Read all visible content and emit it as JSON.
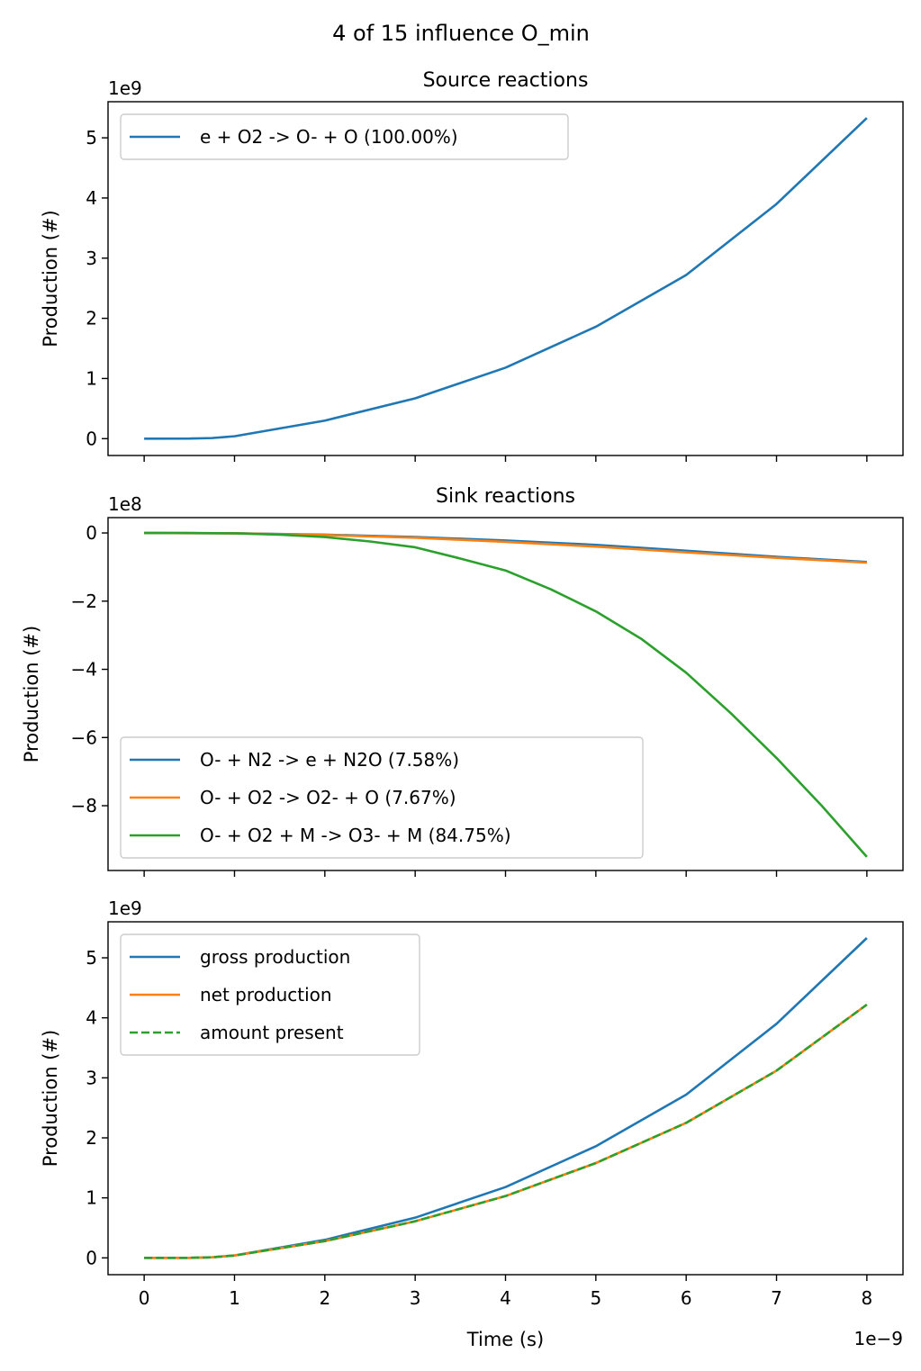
{
  "figure": {
    "suptitle": "4 of 15 influence O_min"
  },
  "colors": {
    "c0": "#1f77b4",
    "c1": "#ff7f0e",
    "c2": "#2ca02c"
  },
  "chart_data": [
    {
      "type": "line",
      "title": "Source reactions",
      "xlabel": "",
      "ylabel": "Production (#)",
      "y_multiplier": "1e9",
      "xlim": [
        -4e-10,
        8.4e-09
      ],
      "ylim": [
        -280000000.0,
        5600000000.0
      ],
      "yticks": [
        0,
        1,
        2,
        3,
        4,
        5
      ],
      "grid": false,
      "legend": "upper left",
      "series": [
        {
          "name": "e + O2 -> O- + O (100.00%)",
          "color": "#1f77b4",
          "style": "solid",
          "x": [
            0,
            5e-10,
            7.5e-10,
            1e-09,
            2e-09,
            3e-09,
            4e-09,
            5e-09,
            6e-09,
            7e-09,
            8e-09
          ],
          "y": [
            0,
            1000000.0,
            10000000.0,
            40000000.0,
            300000000.0,
            670000000.0,
            1180000000.0,
            1860000000.0,
            2720000000.0,
            3900000000.0,
            5330000000.0
          ]
        }
      ]
    },
    {
      "type": "line",
      "title": "Sink reactions",
      "xlabel": "",
      "ylabel": "Production (#)",
      "y_multiplier": "1e8",
      "xlim": [
        -4e-10,
        8.4e-09
      ],
      "ylim": [
        -990000000.0,
        45000000.0
      ],
      "yticks": [
        0,
        -2,
        -4,
        -6,
        -8
      ],
      "ytick_labels": [
        "0",
        "−2",
        "−4",
        "−6",
        "−8"
      ],
      "grid": false,
      "legend": "lower left",
      "series": [
        {
          "name": "O- + N2 -> e + N2O (7.58%)",
          "color": "#1f77b4",
          "style": "solid",
          "x": [
            0,
            1e-09,
            2e-09,
            3e-09,
            4e-09,
            5e-09,
            6e-09,
            7e-09,
            8e-09
          ],
          "y": [
            0,
            -1000000.0,
            -5000000.0,
            -12000000.0,
            -22000000.0,
            -35000000.0,
            -52000000.0,
            -70000000.0,
            -85000000.0
          ]
        },
        {
          "name": "O- + O2 -> O2- + O (7.67%)",
          "color": "#ff7f0e",
          "style": "solid",
          "x": [
            0,
            1e-09,
            2e-09,
            3e-09,
            4e-09,
            5e-09,
            6e-09,
            7e-09,
            8e-09
          ],
          "y": [
            0,
            -1000000.0,
            -6000000.0,
            -14000000.0,
            -26000000.0,
            -40000000.0,
            -57000000.0,
            -73000000.0,
            -87000000.0
          ]
        },
        {
          "name": "O- + O2 + M -> O3- + M (84.75%)",
          "color": "#2ca02c",
          "style": "solid",
          "x": [
            0,
            5e-10,
            1e-09,
            1.5e-09,
            2e-09,
            2.5e-09,
            3e-09,
            3.5e-09,
            4e-09,
            4.5e-09,
            5e-09,
            5.5e-09,
            6e-09,
            6.5e-09,
            7e-09,
            7.5e-09,
            8e-09
          ],
          "y": [
            0,
            0,
            -1000000.0,
            -5000000.0,
            -12000000.0,
            -25000000.0,
            -42000000.0,
            -75000000.0,
            -110000000.0,
            -165000000.0,
            -230000000.0,
            -310000000.0,
            -410000000.0,
            -530000000.0,
            -660000000.0,
            -800000000.0,
            -950000000.0
          ]
        }
      ]
    },
    {
      "type": "line",
      "title": "",
      "xlabel": "Time (s)",
      "ylabel": "Production (#)",
      "x_multiplier": "1e−9",
      "y_multiplier": "1e9",
      "xlim": [
        -4e-10,
        8.4e-09
      ],
      "xticks": [
        0,
        1,
        2,
        3,
        4,
        5,
        6,
        7,
        8
      ],
      "ylim": [
        -280000000.0,
        5600000000.0
      ],
      "yticks": [
        0,
        1,
        2,
        3,
        4,
        5
      ],
      "grid": false,
      "legend": "upper left",
      "series": [
        {
          "name": "gross production",
          "color": "#1f77b4",
          "style": "solid",
          "x": [
            0,
            5e-10,
            7.5e-10,
            1e-09,
            2e-09,
            3e-09,
            4e-09,
            5e-09,
            6e-09,
            7e-09,
            8e-09
          ],
          "y": [
            0,
            1000000.0,
            10000000.0,
            40000000.0,
            300000000.0,
            670000000.0,
            1180000000.0,
            1860000000.0,
            2720000000.0,
            3900000000.0,
            5330000000.0
          ]
        },
        {
          "name": "net production",
          "color": "#ff7f0e",
          "style": "solid",
          "x": [
            0,
            5e-10,
            7.5e-10,
            1e-09,
            2e-09,
            3e-09,
            4e-09,
            5e-09,
            6e-09,
            7e-09,
            8e-09
          ],
          "y": [
            0,
            1000000.0,
            10000000.0,
            40000000.0,
            280000000.0,
            610000000.0,
            1030000000.0,
            1580000000.0,
            2250000000.0,
            3120000000.0,
            4220000000.0
          ]
        },
        {
          "name": "amount present",
          "color": "#2ca02c",
          "style": "dashed",
          "x": [
            0,
            5e-10,
            7.5e-10,
            1e-09,
            2e-09,
            3e-09,
            4e-09,
            5e-09,
            6e-09,
            7e-09,
            8e-09
          ],
          "y": [
            0,
            1000000.0,
            10000000.0,
            40000000.0,
            280000000.0,
            610000000.0,
            1030000000.0,
            1580000000.0,
            2250000000.0,
            3120000000.0,
            4220000000.0
          ]
        }
      ]
    }
  ]
}
